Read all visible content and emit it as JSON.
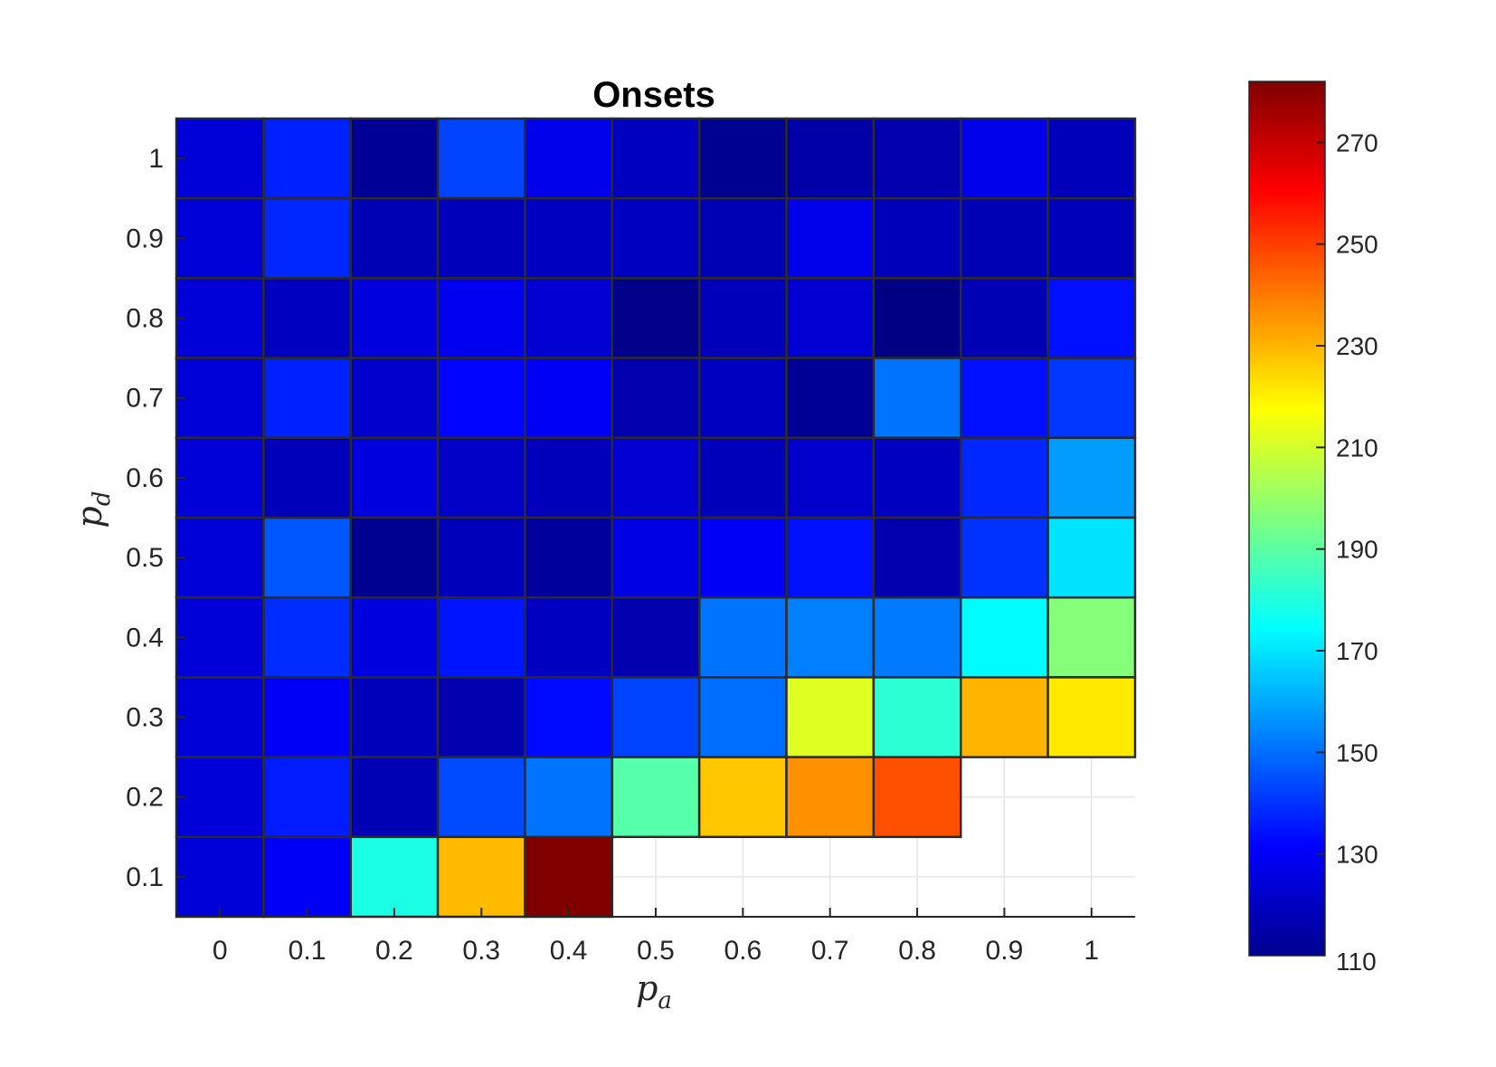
{
  "chart_data": {
    "type": "heatmap",
    "title": "Onsets",
    "xlabel": "p_a",
    "ylabel": "p_d",
    "xlabel_main": "p",
    "xlabel_sub": "a",
    "ylabel_main": "p",
    "ylabel_sub": "d",
    "x_categories": [
      "0",
      "0.1",
      "0.2",
      "0.3",
      "0.4",
      "0.5",
      "0.6",
      "0.7",
      "0.8",
      "0.9",
      "1"
    ],
    "y_categories": [
      "0.1",
      "0.2",
      "0.3",
      "0.4",
      "0.5",
      "0.6",
      "0.7",
      "0.8",
      "0.9",
      "1"
    ],
    "colormap": "jet",
    "clim": [
      110,
      282
    ],
    "colorbar_ticks": [
      "130",
      "150",
      "170",
      "190",
      "210",
      "230",
      "250",
      "270"
    ],
    "colorbar_tick_values": [
      130,
      150,
      170,
      190,
      210,
      230,
      250,
      270
    ],
    "colorbar_min_label": "110",
    "grid": true,
    "empty_cell_value": null,
    "rows": [
      {
        "y": "1",
        "values": [
          125,
          137,
          114,
          143,
          128,
          121,
          113,
          117,
          118,
          128,
          120
        ]
      },
      {
        "y": "0.9",
        "values": [
          125,
          138,
          119,
          120,
          121,
          121,
          119,
          128,
          120,
          119,
          120
        ]
      },
      {
        "y": "0.8",
        "values": [
          125,
          121,
          126,
          129,
          124,
          112,
          120,
          124,
          111,
          119,
          134
        ]
      },
      {
        "y": "0.7",
        "values": [
          125,
          137,
          123,
          132,
          130,
          118,
          121,
          114,
          151,
          134,
          141
        ]
      },
      {
        "y": "0.6",
        "values": [
          125,
          120,
          126,
          122,
          120,
          124,
          120,
          123,
          121,
          138,
          158
        ]
      },
      {
        "y": "0.5",
        "values": [
          125,
          146,
          113,
          120,
          115,
          127,
          130,
          134,
          118,
          140,
          170
        ]
      },
      {
        "y": "0.4",
        "values": [
          125,
          139,
          126,
          135,
          121,
          118,
          151,
          153,
          152,
          174,
          197
        ]
      },
      {
        "y": "0.3",
        "values": [
          125,
          130,
          120,
          118,
          133,
          143,
          150,
          212,
          182,
          230,
          221
        ]
      },
      {
        "y": "0.2",
        "values": [
          125,
          136,
          119,
          144,
          151,
          189,
          227,
          236,
          247,
          null,
          null
        ]
      },
      {
        "y": "0.1",
        "values": [
          125,
          130,
          179,
          229,
          282,
          null,
          null,
          null,
          null,
          null,
          null
        ]
      }
    ]
  }
}
